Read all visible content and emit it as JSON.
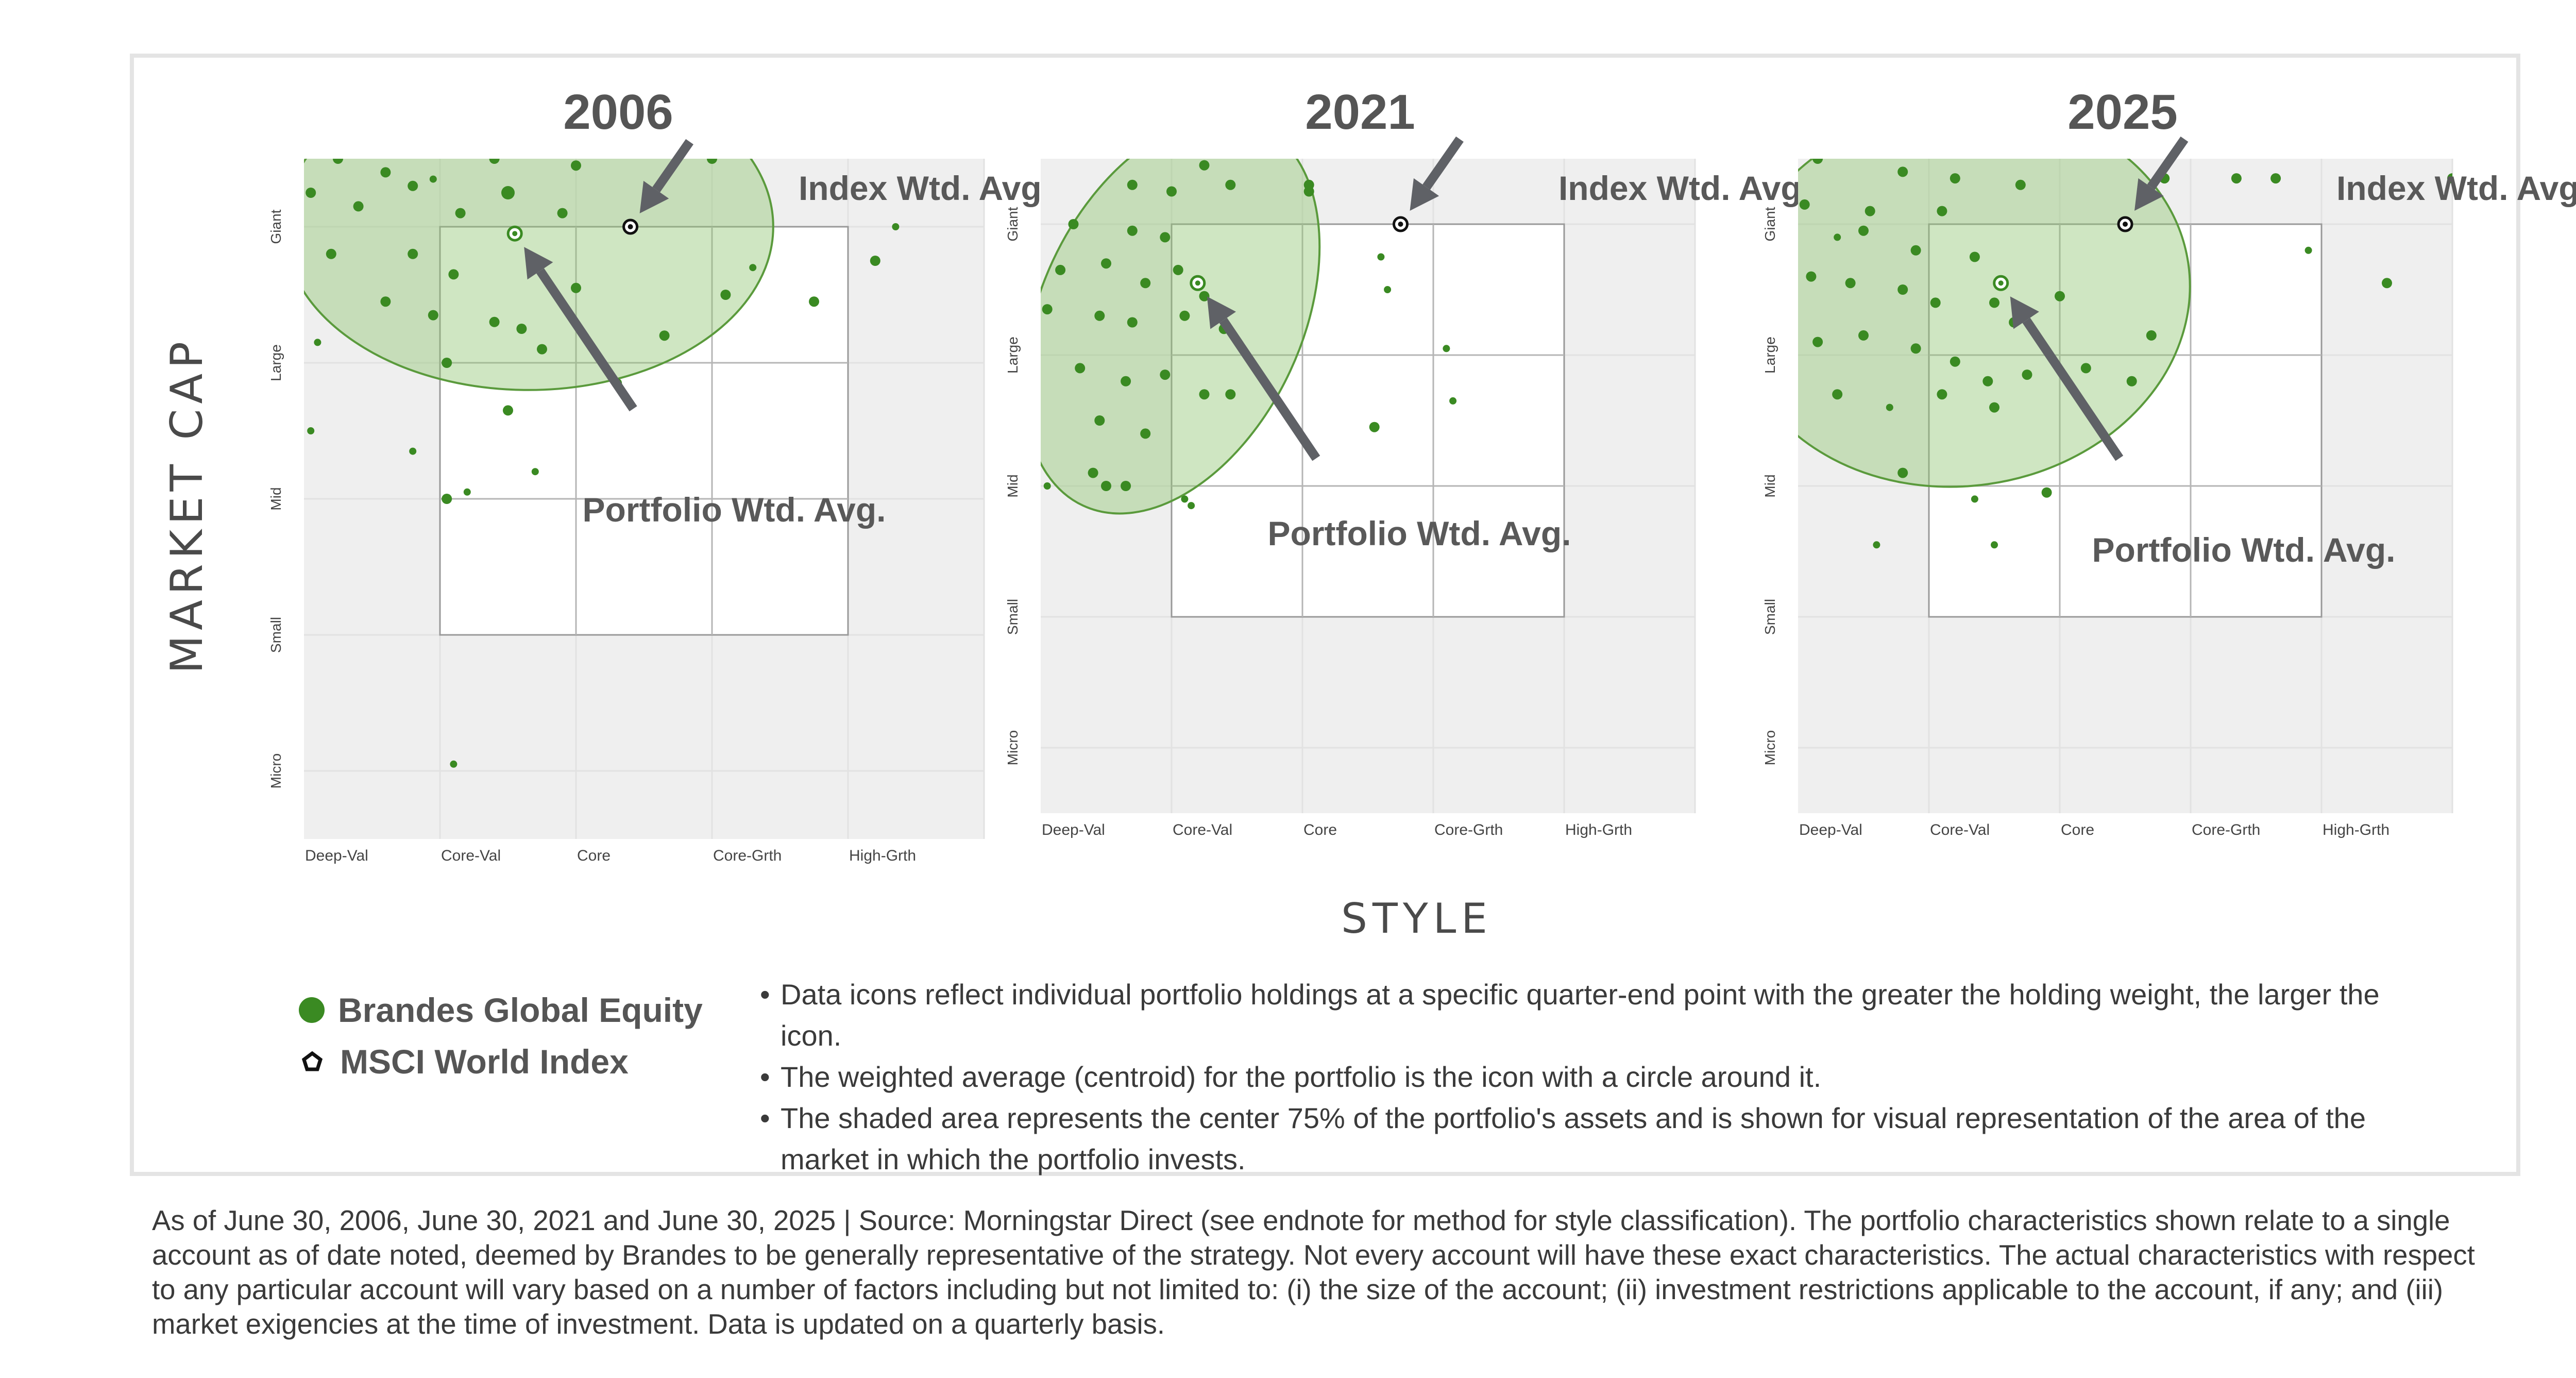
{
  "chart_data": {
    "type": "scatter",
    "y_axis_title": "MARKET CAP",
    "x_axis_title": "STYLE",
    "style_categories": [
      "Deep-Val",
      "Core-Val",
      "Core",
      "Core-Grth",
      "High-Grth"
    ],
    "size_categories": [
      "Giant",
      "Large",
      "Mid",
      "Small",
      "Micro"
    ],
    "style_range": [
      -1,
      4
    ],
    "size_range": [
      -0.5,
      4.5
    ],
    "colors": {
      "portfolio": "#3a8a22",
      "index": "#111111",
      "shade": "#8cc46e",
      "arrow": "#5f6166"
    },
    "panels": [
      {
        "title": "2006",
        "index_label": "Index Wtd. Avg.",
        "portfolio_label": "Portfolio Wtd. Avg.",
        "index_avg": [
          1.4,
          0.0
        ],
        "portfolio_avg": [
          0.55,
          0.05
        ],
        "shade_ellipse": {
          "cx": 0.65,
          "cy": 0.0,
          "rx": 1.8,
          "ry": 1.2
        },
        "holdings": [
          [
            -0.9,
            -0.9,
            2
          ],
          [
            -0.5,
            -0.8,
            2
          ],
          [
            -0.3,
            -0.6,
            2
          ],
          [
            0.0,
            -0.9,
            2
          ],
          [
            0.3,
            -0.8,
            2
          ],
          [
            0.7,
            -0.7,
            1
          ],
          [
            1.1,
            -0.8,
            2
          ],
          [
            1.9,
            -0.9,
            2
          ],
          [
            2.4,
            -0.7,
            2
          ],
          [
            -0.75,
            -0.5,
            2
          ],
          [
            -0.4,
            -0.4,
            2
          ],
          [
            -0.05,
            -0.35,
            1
          ],
          [
            0.5,
            -0.25,
            3
          ],
          [
            0.4,
            -0.5,
            2
          ],
          [
            1.0,
            -0.45,
            2
          ],
          [
            1.5,
            -0.6,
            2
          ],
          [
            2.0,
            -0.5,
            2
          ],
          [
            -0.95,
            -0.25,
            2
          ],
          [
            -0.6,
            -0.15,
            2
          ],
          [
            -0.2,
            -0.3,
            2
          ],
          [
            0.15,
            -0.1,
            2
          ],
          [
            0.9,
            -0.1,
            2
          ],
          [
            -0.8,
            0.2,
            2
          ],
          [
            -0.2,
            0.2,
            2
          ],
          [
            0.1,
            0.35,
            2
          ],
          [
            -0.4,
            0.55,
            2
          ],
          [
            -0.05,
            0.65,
            2
          ],
          [
            0.6,
            0.75,
            2
          ],
          [
            1.0,
            0.45,
            2
          ],
          [
            0.4,
            0.7,
            2
          ],
          [
            0.75,
            0.9,
            2
          ],
          [
            2.1,
            0.5,
            2
          ],
          [
            1.65,
            0.8,
            2
          ],
          [
            2.3,
            0.3,
            1
          ],
          [
            2.75,
            0.55,
            2
          ],
          [
            3.2,
            0.25,
            2
          ],
          [
            3.35,
            0.0,
            1
          ],
          [
            -0.9,
            0.85,
            1
          ],
          [
            0.05,
            1.0,
            2
          ],
          [
            -0.95,
            1.5,
            1
          ],
          [
            -0.2,
            1.65,
            1
          ],
          [
            0.5,
            1.35,
            2
          ],
          [
            0.7,
            1.8,
            1
          ],
          [
            0.2,
            1.95,
            1
          ],
          [
            1.3,
            1.15,
            2
          ],
          [
            0.05,
            2.0,
            2
          ],
          [
            0.1,
            3.95,
            1
          ]
        ]
      },
      {
        "title": "2021",
        "index_label": "Index Wtd. Avg.",
        "portfolio_label": "Portfolio Wtd. Avg.",
        "index_avg": [
          1.75,
          0.0
        ],
        "portfolio_avg": [
          0.2,
          0.45
        ],
        "shade_ellipse": {
          "cx": 0.0,
          "cy": 0.7,
          "rx": 1.0,
          "ry": 1.6,
          "rotate": 25
        },
        "holdings": [
          [
            -0.5,
            -0.7,
            2
          ],
          [
            -0.1,
            -0.55,
            2
          ],
          [
            0.25,
            -0.45,
            2
          ],
          [
            0.7,
            -0.6,
            2
          ],
          [
            -0.3,
            -0.3,
            2
          ],
          [
            0.0,
            -0.25,
            2
          ],
          [
            0.45,
            -0.3,
            2
          ],
          [
            1.05,
            -0.25,
            2
          ],
          [
            -0.75,
            0.0,
            2
          ],
          [
            -0.3,
            0.05,
            2
          ],
          [
            -0.05,
            0.1,
            2
          ],
          [
            -0.85,
            0.35,
            2
          ],
          [
            -0.5,
            0.3,
            2
          ],
          [
            -0.2,
            0.45,
            2
          ],
          [
            0.05,
            0.35,
            2
          ],
          [
            0.25,
            0.55,
            2
          ],
          [
            -0.95,
            0.65,
            2
          ],
          [
            -0.55,
            0.7,
            2
          ],
          [
            -0.3,
            0.75,
            2
          ],
          [
            0.1,
            0.7,
            2
          ],
          [
            0.4,
            0.8,
            2
          ],
          [
            -0.7,
            1.1,
            2
          ],
          [
            -0.35,
            1.2,
            2
          ],
          [
            -0.05,
            1.15,
            2
          ],
          [
            0.25,
            1.3,
            2
          ],
          [
            -0.55,
            1.5,
            2
          ],
          [
            -0.2,
            1.6,
            2
          ],
          [
            0.45,
            1.3,
            2
          ],
          [
            -0.6,
            1.9,
            2
          ],
          [
            -0.95,
            2.0,
            1
          ],
          [
            -0.35,
            2.0,
            2
          ],
          [
            -0.5,
            2.0,
            2
          ],
          [
            0.15,
            2.15,
            1
          ],
          [
            1.55,
            1.55,
            2
          ],
          [
            1.65,
            0.5,
            1
          ],
          [
            1.6,
            0.25,
            1
          ],
          [
            2.1,
            0.95,
            1
          ],
          [
            2.15,
            1.35,
            1
          ],
          [
            1.05,
            -0.3,
            2
          ],
          [
            0.1,
            2.1,
            1
          ]
        ]
      },
      {
        "title": "2025",
        "index_label": "Index Wtd. Avg.",
        "portfolio_label": "Portfolio Wtd. Avg.",
        "index_avg": [
          1.5,
          0.0
        ],
        "portfolio_avg": [
          0.55,
          0.45
        ],
        "shade_ellipse": {
          "cx": 0.25,
          "cy": 0.55,
          "rx": 1.75,
          "ry": 1.45,
          "rotate": -8
        },
        "holdings": [
          [
            -0.6,
            -0.75,
            2
          ],
          [
            0.05,
            -0.8,
            2
          ],
          [
            0.5,
            -0.6,
            2
          ],
          [
            1.15,
            -0.85,
            1
          ],
          [
            -0.85,
            -0.5,
            2
          ],
          [
            -0.2,
            -0.4,
            2
          ],
          [
            0.2,
            -0.35,
            2
          ],
          [
            0.7,
            -0.3,
            2
          ],
          [
            1.8,
            -0.35,
            2
          ],
          [
            2.65,
            -0.35,
            2
          ],
          [
            -0.95,
            -0.15,
            2
          ],
          [
            -0.45,
            -0.1,
            2
          ],
          [
            0.1,
            -0.1,
            2
          ],
          [
            -0.7,
            0.1,
            1
          ],
          [
            -0.5,
            0.05,
            2
          ],
          [
            -0.1,
            0.2,
            2
          ],
          [
            0.35,
            0.25,
            2
          ],
          [
            -0.9,
            0.4,
            2
          ],
          [
            -0.6,
            0.45,
            2
          ],
          [
            -0.2,
            0.5,
            2
          ],
          [
            0.05,
            0.6,
            2
          ],
          [
            0.5,
            0.6,
            2
          ],
          [
            0.65,
            0.75,
            2
          ],
          [
            1.0,
            0.55,
            2
          ],
          [
            -0.85,
            0.9,
            2
          ],
          [
            -0.5,
            0.85,
            2
          ],
          [
            -0.1,
            0.95,
            2
          ],
          [
            0.2,
            1.05,
            2
          ],
          [
            0.45,
            1.2,
            2
          ],
          [
            0.75,
            1.15,
            2
          ],
          [
            1.2,
            1.1,
            2
          ],
          [
            1.7,
            0.85,
            2
          ],
          [
            -0.7,
            1.3,
            2
          ],
          [
            -0.3,
            1.4,
            1
          ],
          [
            0.1,
            1.3,
            2
          ],
          [
            0.5,
            1.4,
            2
          ],
          [
            1.55,
            1.2,
            2
          ],
          [
            -0.2,
            1.9,
            2
          ],
          [
            0.35,
            2.1,
            1
          ],
          [
            0.9,
            2.05,
            2
          ],
          [
            0.5,
            2.45,
            1
          ],
          [
            -0.4,
            2.45,
            1
          ],
          [
            2.9,
            0.2,
            1
          ],
          [
            3.5,
            0.45,
            2
          ],
          [
            4.0,
            -0.35,
            2
          ],
          [
            2.35,
            -0.35,
            2
          ]
        ]
      }
    ]
  },
  "legend": {
    "portfolio_label": "Brandes Global Equity",
    "index_label": "MSCI World Index"
  },
  "notes": [
    "Data icons reflect individual portfolio holdings at a specific quarter-end point with the greater the holding weight, the larger the icon.",
    "The weighted average (centroid) for the portfolio is the icon with a circle around it.",
    "The shaded area represents the center 75% of the portfolio's assets and is shown for visual representation of the area of the market in which the portfolio invests."
  ],
  "bullet_char": "•",
  "footnote": "As of June 30, 2006, June 30, 2021 and June 30, 2025 | Source: Morningstar Direct (see endnote for method for style classification). The portfolio characteristics shown relate to a single account as of date noted, deemed by Brandes to be generally representative of the strategy. Not every account will have these exact characteristics. The actual characteristics with respect to any particular account will vary based on a number of factors including but not limited to: (i) the size of the account; (ii) investment restrictions applicable to the account, if any; and (iii) market exigencies at the time of investment. Data is updated on a quarterly basis."
}
